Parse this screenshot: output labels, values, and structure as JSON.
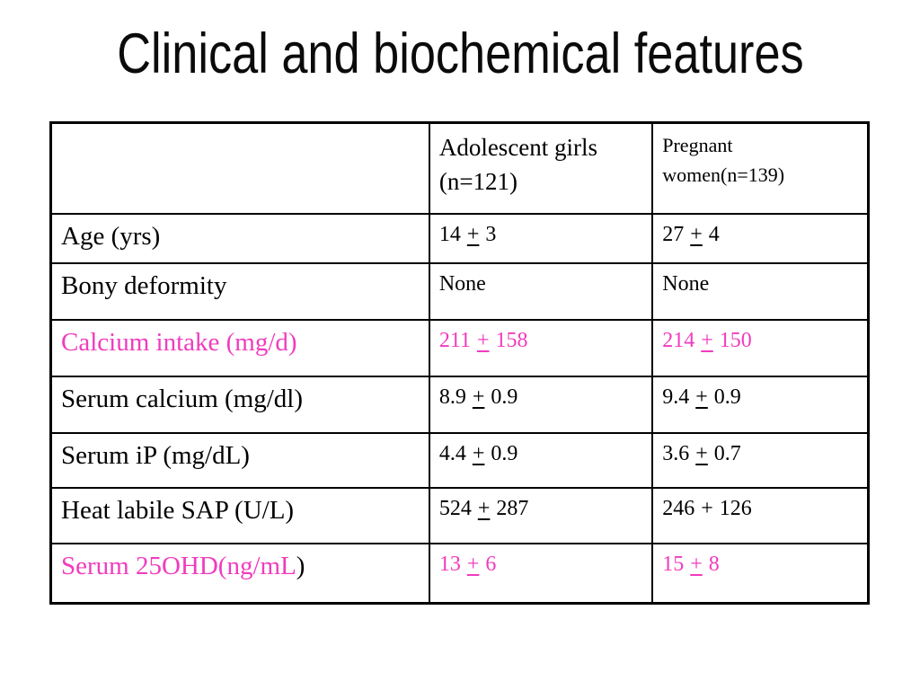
{
  "slide": {
    "title": "Clinical and biochemical features"
  },
  "colors": {
    "accent_pink": "#F03CBE",
    "text": "#000000",
    "table_border": "#000000",
    "background": "#FFFFFF"
  },
  "table": {
    "col_headers": {
      "girls": {
        "line1": "Adolescent girls",
        "line2": "(n=121)"
      },
      "pregnant": {
        "line1": "Pregnant",
        "line2": "women(n=139)"
      }
    },
    "rows": [
      {
        "label": "Age (yrs)",
        "label_suffix": "",
        "pink": false,
        "girls": {
          "pre": "14",
          "sign": "+",
          "post": "3",
          "pm": true
        },
        "pregnant": {
          "pre": "27",
          "sign": "+",
          "post": "4",
          "pm": true
        }
      },
      {
        "label": "Bony deformity",
        "label_suffix": "",
        "pink": false,
        "girls": {
          "pre": "None",
          "sign": "",
          "post": "",
          "pm": false
        },
        "pregnant": {
          "pre": "None",
          "sign": "",
          "post": "",
          "pm": false
        }
      },
      {
        "label": "Calcium intake (mg/d)",
        "label_suffix": "",
        "pink": true,
        "girls": {
          "pre": "211",
          "sign": "+",
          "post": "158",
          "pm": true
        },
        "pregnant": {
          "pre": "214",
          "sign": "+",
          "post": "150",
          "pm": true
        }
      },
      {
        "label": "Serum calcium (mg/dl)",
        "label_suffix": "",
        "pink": false,
        "girls": {
          "pre": "8.9",
          "sign": "+",
          "post": "0.9",
          "pm": true
        },
        "pregnant": {
          "pre": "9.4",
          "sign": "+",
          "post": "0.9",
          "pm": true
        }
      },
      {
        "label": "Serum iP (mg/dL)",
        "label_suffix": "",
        "pink": false,
        "girls": {
          "pre": "4.4",
          "sign": "+",
          "post": "0.9",
          "pm": true
        },
        "pregnant": {
          "pre": "3.6",
          "sign": "+",
          "post": "0.7",
          "pm": true
        }
      },
      {
        "label": "Heat labile SAP (U/L)",
        "label_suffix": "",
        "pink": false,
        "girls": {
          "pre": "524",
          "sign": "+",
          "post": "287",
          "pm": true
        },
        "pregnant": {
          "pre": "246",
          "sign": "+",
          "post": "126",
          "pm": false
        }
      },
      {
        "label": "Serum 25OHD(ng/mL",
        "label_suffix": ")",
        "pink": true,
        "girls": {
          "pre": "13",
          "sign": "+",
          "post": "6",
          "pm": true
        },
        "pregnant": {
          "pre": "15",
          "sign": "+",
          "post": "8",
          "pm": true
        }
      }
    ]
  }
}
